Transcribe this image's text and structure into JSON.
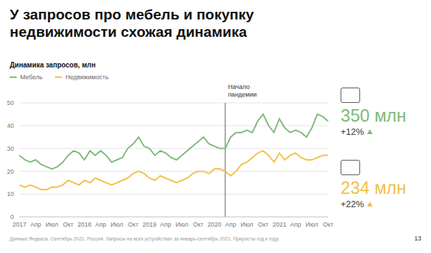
{
  "chart_data": {
    "type": "line",
    "title": "У запросов про мебель и покупку недвижимости схожая динамика",
    "subtitle": "Динамика запросов, млн",
    "categories": [
      "2017",
      null,
      null,
      "Апр",
      null,
      null,
      "Июл",
      null,
      null,
      "Окт",
      null,
      null,
      "2018",
      null,
      null,
      "Апр",
      null,
      null,
      "Июл",
      null,
      null,
      "Окт",
      null,
      null,
      "2019",
      null,
      null,
      "Апр",
      null,
      null,
      "Июл",
      null,
      null,
      "Окт",
      null,
      null,
      "2020",
      null,
      null,
      "Апр",
      null,
      null,
      "Июл",
      null,
      null,
      "Окт",
      null,
      null,
      "2021",
      null,
      null,
      "Апр",
      null,
      null,
      "Июл",
      null,
      null,
      "Окт"
    ],
    "series": [
      {
        "name": "Мебель",
        "color": "#7dba78",
        "values": [
          27,
          25,
          24,
          25,
          23,
          22,
          21,
          22,
          24,
          27,
          29,
          28,
          25,
          29,
          27,
          29,
          27,
          24,
          25,
          26,
          30,
          32,
          35,
          31,
          30,
          27,
          29,
          28,
          26,
          25,
          27,
          29,
          31,
          33,
          35,
          32,
          31,
          30,
          30,
          35,
          37,
          37,
          38,
          37,
          42,
          45,
          40,
          37,
          43,
          39,
          37,
          38,
          37,
          35,
          39,
          45,
          44,
          42
        ]
      },
      {
        "name": "Недвижимость",
        "color": "#f0c04a",
        "values": [
          14,
          13,
          14,
          13,
          12,
          12,
          13,
          13,
          14,
          16,
          15,
          14,
          16,
          15,
          17,
          16,
          15,
          14,
          15,
          16,
          17,
          19,
          20,
          19,
          17,
          16,
          18,
          17,
          16,
          15,
          16,
          17,
          19,
          20,
          20,
          19,
          21,
          21,
          20,
          18,
          20,
          23,
          24,
          26,
          28,
          29,
          27,
          24,
          28,
          25,
          27,
          28,
          26,
          25,
          25,
          26,
          27,
          27
        ]
      }
    ],
    "ylim": [
      0,
      50
    ],
    "yticks": [
      0,
      10,
      20,
      30,
      40,
      50
    ],
    "grid": true,
    "legend": "top-left",
    "annotations": [
      {
        "text": "Начало пандемии",
        "x": 38
      }
    ],
    "stats": [
      {
        "value": "350 млн",
        "change": "+12%",
        "color": "#7dba78"
      },
      {
        "value": "234 млн",
        "change": "+22%",
        "color": "#f0c04a"
      }
    ],
    "footer": "Данные Яндекса. Сентябрь 2021. Россия. Запросы на всех устройствах за январь-сентябрь 2021. Приросты год к году.",
    "page": "13"
  }
}
